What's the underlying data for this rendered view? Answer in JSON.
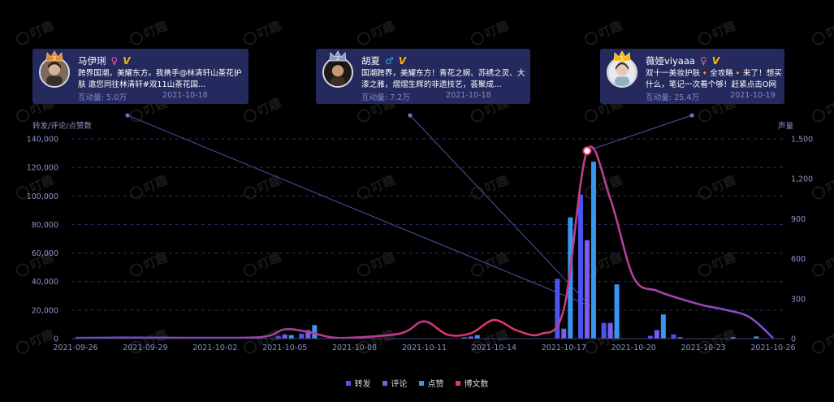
{
  "colors": {
    "repost": "#4a54f1",
    "comment": "#7a5cf0",
    "like": "#3696f2",
    "posts": "#e2336b",
    "card_bg": "#252a5e",
    "axis_text": "#8a94c9",
    "grid": "#2a3068",
    "leader": "#3c4a8f"
  },
  "watermark": "叮趣",
  "kol_cards": [
    {
      "rank": "3",
      "rank_icon": "crown-icon",
      "name": "马伊琍",
      "gender": "♀",
      "gender_type": "female",
      "verified": "V",
      "text": "跨界国潮，美耀东方。我携手@林清轩山茶花护肤 邀您同往林清轩#双11山茶花国…",
      "engagement_label": "互动量:",
      "engagement": "5.0万",
      "date": "2021-10-18"
    },
    {
      "rank": "2",
      "rank_icon": "crown-icon",
      "name": "胡夏",
      "gender": "♂",
      "gender_type": "male",
      "verified": "V",
      "text": "国潮跨界，美耀东方！青花之婉、苏绣之灵、大漆之雅，熠熠生辉的非遗技艺，荟聚成…",
      "engagement_label": "互动量:",
      "engagement": "7.2万",
      "date": "2021-10-18"
    },
    {
      "rank": "1",
      "rank_icon": "crown-icon",
      "name": "薇娅viyaaa",
      "gender": "♀",
      "gender_type": "female",
      "verified": "V",
      "text": "双十一美妆护肤🔸全攻略🔸来了！想买什么，笔记一次看个够！赶紧点击O网页链…",
      "engagement_label": "互动量:",
      "engagement": "25.4万",
      "date": "2021-10-19"
    }
  ],
  "chart_data": {
    "type": "bar",
    "title": "",
    "y_left_label": "转发/评论/点赞数",
    "y_right_label": "声量",
    "y_left_ticks": [
      "0",
      "20,000",
      "40,000",
      "60,000",
      "80,000",
      "100,000",
      "120,000",
      "140,000"
    ],
    "y_right_ticks": [
      "0",
      "300",
      "600",
      "900",
      "1,200",
      "1,500"
    ],
    "ylim_left": [
      0,
      140000
    ],
    "ylim_right": [
      0,
      1500
    ],
    "x_tick_labels": [
      "2021-09-26",
      "2021-09-29",
      "2021-10-02",
      "2021-10-05",
      "2021-10-08",
      "2021-10-11",
      "2021-10-14",
      "2021-10-17",
      "2021-10-20",
      "2021-10-23",
      "2021-10-26"
    ],
    "x_start": "2021-09-26",
    "x_end": "2021-10-26",
    "legend_position": "bottom",
    "series": [
      {
        "name": "转发",
        "kind": "bar",
        "axis": "left",
        "color": "#4a54f1",
        "points": [
          [
            "2021-10-05",
            1800
          ],
          [
            "2021-10-06",
            3500
          ],
          [
            "2021-10-13",
            1000
          ],
          [
            "2021-10-17",
            42000
          ],
          [
            "2021-10-18",
            101000
          ],
          [
            "2021-10-19",
            11000
          ],
          [
            "2021-10-21",
            2000
          ],
          [
            "2021-10-22",
            3000
          ]
        ]
      },
      {
        "name": "评论",
        "kind": "bar",
        "axis": "left",
        "color": "#7a5cf0",
        "points": [
          [
            "2021-10-05",
            3000
          ],
          [
            "2021-10-06",
            6000
          ],
          [
            "2021-10-13",
            1500
          ],
          [
            "2021-10-17",
            7000
          ],
          [
            "2021-10-18",
            69000
          ],
          [
            "2021-10-19",
            11000
          ],
          [
            "2021-10-21",
            6000
          ],
          [
            "2021-10-22",
            1000
          ]
        ]
      },
      {
        "name": "点赞",
        "kind": "bar",
        "axis": "left",
        "color": "#3696f2",
        "points": [
          [
            "2021-10-05",
            2500
          ],
          [
            "2021-10-06",
            9500
          ],
          [
            "2021-10-13",
            2500
          ],
          [
            "2021-10-17",
            85000
          ],
          [
            "2021-10-18",
            124000
          ],
          [
            "2021-10-19",
            38000
          ],
          [
            "2021-10-21",
            17000
          ],
          [
            "2021-10-24",
            1000
          ],
          [
            "2021-10-25",
            1500
          ]
        ]
      },
      {
        "name": "博文数",
        "kind": "line",
        "axis": "right",
        "color": "#e2336b",
        "points": [
          [
            "2021-09-26",
            5
          ],
          [
            "2021-09-28",
            8
          ],
          [
            "2021-10-01",
            6
          ],
          [
            "2021-10-04",
            12
          ],
          [
            "2021-10-05",
            70
          ],
          [
            "2021-10-06",
            50
          ],
          [
            "2021-10-07",
            10
          ],
          [
            "2021-10-08",
            8
          ],
          [
            "2021-10-10",
            40
          ],
          [
            "2021-10-11",
            130
          ],
          [
            "2021-10-12",
            30
          ],
          [
            "2021-10-13",
            40
          ],
          [
            "2021-10-14",
            140
          ],
          [
            "2021-10-15",
            60
          ],
          [
            "2021-10-16",
            35
          ],
          [
            "2021-10-17",
            220
          ],
          [
            "2021-10-18",
            1410
          ],
          [
            "2021-10-19",
            1050
          ],
          [
            "2021-10-20",
            460
          ],
          [
            "2021-10-21",
            360
          ],
          [
            "2021-10-22",
            300
          ],
          [
            "2021-10-23",
            250
          ],
          [
            "2021-10-24",
            215
          ],
          [
            "2021-10-25",
            160
          ],
          [
            "2021-10-26",
            5
          ]
        ]
      }
    ],
    "anchors": [
      {
        "x": "2021-10-18",
        "y": 1410
      }
    ]
  }
}
